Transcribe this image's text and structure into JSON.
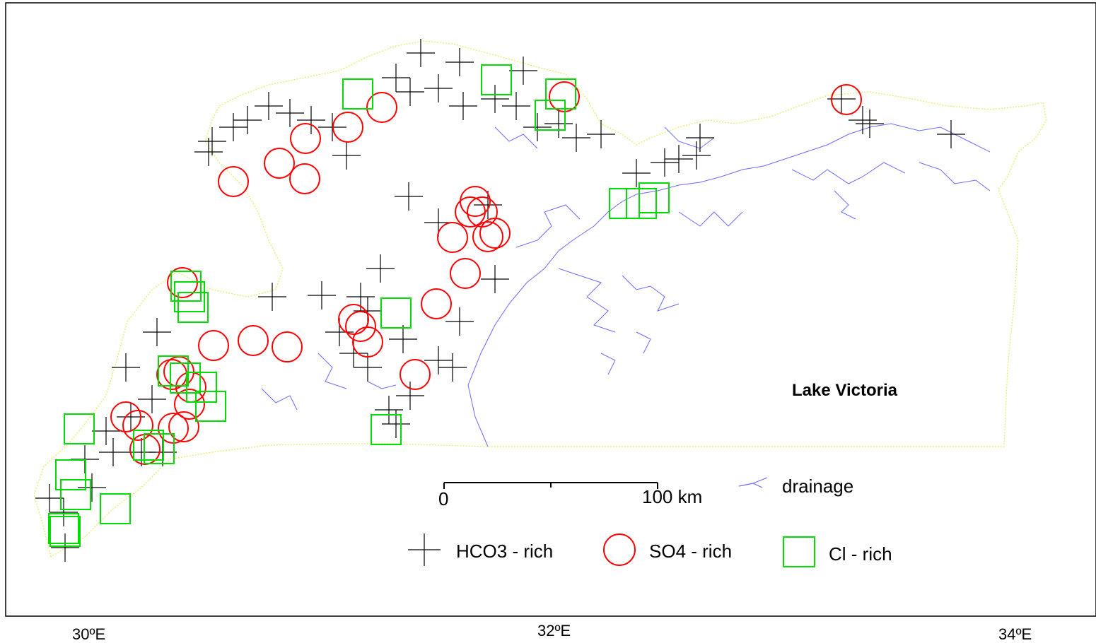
{
  "map": {
    "lake_label": "Lake Victoria",
    "x_axis_ticks": [
      "30ºE",
      "32ºE",
      "34ºE"
    ],
    "scale_bar": {
      "start_label": "0",
      "end_label": "100 km"
    },
    "legend": {
      "drainage": {
        "label": "drainage",
        "color": "#6a6aff",
        "icon": "drainage-line-icon"
      },
      "hco3": {
        "label": "HCO3 - rich",
        "color": "#000000",
        "icon": "cross-marker-icon"
      },
      "so4": {
        "label": "SO4 - rich",
        "color": "#ff0000",
        "icon": "circle-marker-icon"
      },
      "cl": {
        "label": "Cl - rich",
        "color": "#00dd00",
        "icon": "square-marker-icon"
      }
    },
    "colors": {
      "boundary": "#e8e860",
      "frame": "#000000"
    }
  }
}
